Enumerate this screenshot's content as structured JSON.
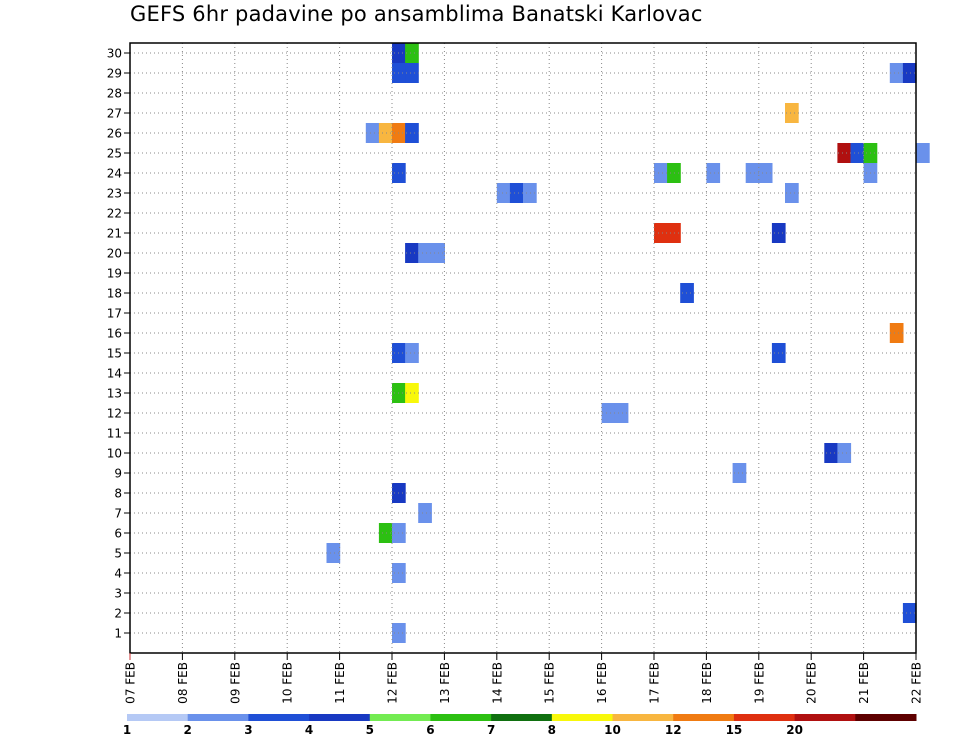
{
  "chart_data": {
    "type": "heatmap",
    "title": "GEFS 6hr padavine po ansamblima Banatski Karlovac",
    "x": {
      "ticks": [
        "07 FEB",
        "08 FEB",
        "09 FEB",
        "10 FEB",
        "11 FEB",
        "12 FEB",
        "13 FEB",
        "14 FEB",
        "15 FEB",
        "16 FEB",
        "17 FEB",
        "18 FEB",
        "19 FEB",
        "20 FEB",
        "21 FEB",
        "22 FEB"
      ],
      "range_days": [
        0,
        15
      ],
      "step_hours": 6
    },
    "y": {
      "ticks": [
        "1",
        "2",
        "3",
        "4",
        "5",
        "6",
        "7",
        "8",
        "9",
        "10",
        "11",
        "12",
        "13",
        "14",
        "15",
        "16",
        "17",
        "18",
        "19",
        "20",
        "21",
        "22",
        "23",
        "24",
        "25",
        "26",
        "27",
        "28",
        "29",
        "30"
      ],
      "range": [
        0,
        30.5
      ]
    },
    "grid": true,
    "legend": {
      "placement": "bottom",
      "labels": [
        "1",
        "2",
        "3",
        "4",
        "5",
        "6",
        "7",
        "8",
        "10",
        "12",
        "15",
        "20"
      ],
      "colors": [
        "#b5c9f5",
        "#6a91eb",
        "#1f4fd6",
        "#1839c2",
        "#73ec52",
        "#2cc012",
        "#107010",
        "#f8f80a",
        "#f8b640",
        "#f07b12",
        "#df3010",
        "#b01010",
        "#5e0000"
      ]
    },
    "cells": [
      {
        "x": 5.0,
        "y": 30,
        "c": 3
      },
      {
        "x": 5.25,
        "y": 30,
        "c": 5
      },
      {
        "x": 5.0,
        "y": 29,
        "c": 2
      },
      {
        "x": 5.25,
        "y": 29,
        "c": 2
      },
      {
        "x": 14.5,
        "y": 29,
        "c": 1
      },
      {
        "x": 14.75,
        "y": 29,
        "c": 3
      },
      {
        "x": 12.5,
        "y": 27,
        "c": 8
      },
      {
        "x": 4.5,
        "y": 26,
        "c": 1
      },
      {
        "x": 4.75,
        "y": 26,
        "c": 8
      },
      {
        "x": 5.0,
        "y": 26,
        "c": 9
      },
      {
        "x": 5.25,
        "y": 26,
        "c": 2
      },
      {
        "x": 13.5,
        "y": 25,
        "c": 11
      },
      {
        "x": 13.75,
        "y": 25,
        "c": 2
      },
      {
        "x": 14.0,
        "y": 25,
        "c": 5
      },
      {
        "x": 15.0,
        "y": 25,
        "c": 1
      },
      {
        "x": 5.0,
        "y": 24,
        "c": 2
      },
      {
        "x": 10.0,
        "y": 24,
        "c": 1
      },
      {
        "x": 10.25,
        "y": 24,
        "c": 5
      },
      {
        "x": 11.0,
        "y": 24,
        "c": 1
      },
      {
        "x": 11.75,
        "y": 24,
        "c": 1
      },
      {
        "x": 12.0,
        "y": 24,
        "c": 1
      },
      {
        "x": 14.0,
        "y": 24,
        "c": 1
      },
      {
        "x": 7.0,
        "y": 23,
        "c": 1
      },
      {
        "x": 7.25,
        "y": 23,
        "c": 2
      },
      {
        "x": 7.5,
        "y": 23,
        "c": 1
      },
      {
        "x": 12.5,
        "y": 23,
        "c": 1
      },
      {
        "x": 10.0,
        "y": 21,
        "c": 10
      },
      {
        "x": 10.25,
        "y": 21,
        "c": 10
      },
      {
        "x": 12.25,
        "y": 21,
        "c": 3
      },
      {
        "x": 5.25,
        "y": 20,
        "c": 3
      },
      {
        "x": 5.5,
        "y": 20,
        "c": 1
      },
      {
        "x": 5.75,
        "y": 20,
        "c": 1
      },
      {
        "x": 10.5,
        "y": 18,
        "c": 2
      },
      {
        "x": 14.5,
        "y": 16,
        "c": 9
      },
      {
        "x": 5.0,
        "y": 15,
        "c": 2
      },
      {
        "x": 5.25,
        "y": 15,
        "c": 1
      },
      {
        "x": 12.25,
        "y": 15,
        "c": 2
      },
      {
        "x": 5.0,
        "y": 13,
        "c": 5
      },
      {
        "x": 5.25,
        "y": 13,
        "c": 7
      },
      {
        "x": 9.0,
        "y": 12,
        "c": 1
      },
      {
        "x": 9.25,
        "y": 12,
        "c": 1
      },
      {
        "x": 13.25,
        "y": 10,
        "c": 3
      },
      {
        "x": 13.5,
        "y": 10,
        "c": 1
      },
      {
        "x": 11.5,
        "y": 9,
        "c": 1
      },
      {
        "x": 5.0,
        "y": 8,
        "c": 3
      },
      {
        "x": 5.5,
        "y": 7,
        "c": 1
      },
      {
        "x": 4.75,
        "y": 6,
        "c": 5
      },
      {
        "x": 5.0,
        "y": 6,
        "c": 1
      },
      {
        "x": 3.75,
        "y": 5,
        "c": 1
      },
      {
        "x": 5.0,
        "y": 4,
        "c": 1
      },
      {
        "x": 14.75,
        "y": 2,
        "c": 2
      },
      {
        "x": 5.0,
        "y": 1,
        "c": 1
      }
    ]
  }
}
